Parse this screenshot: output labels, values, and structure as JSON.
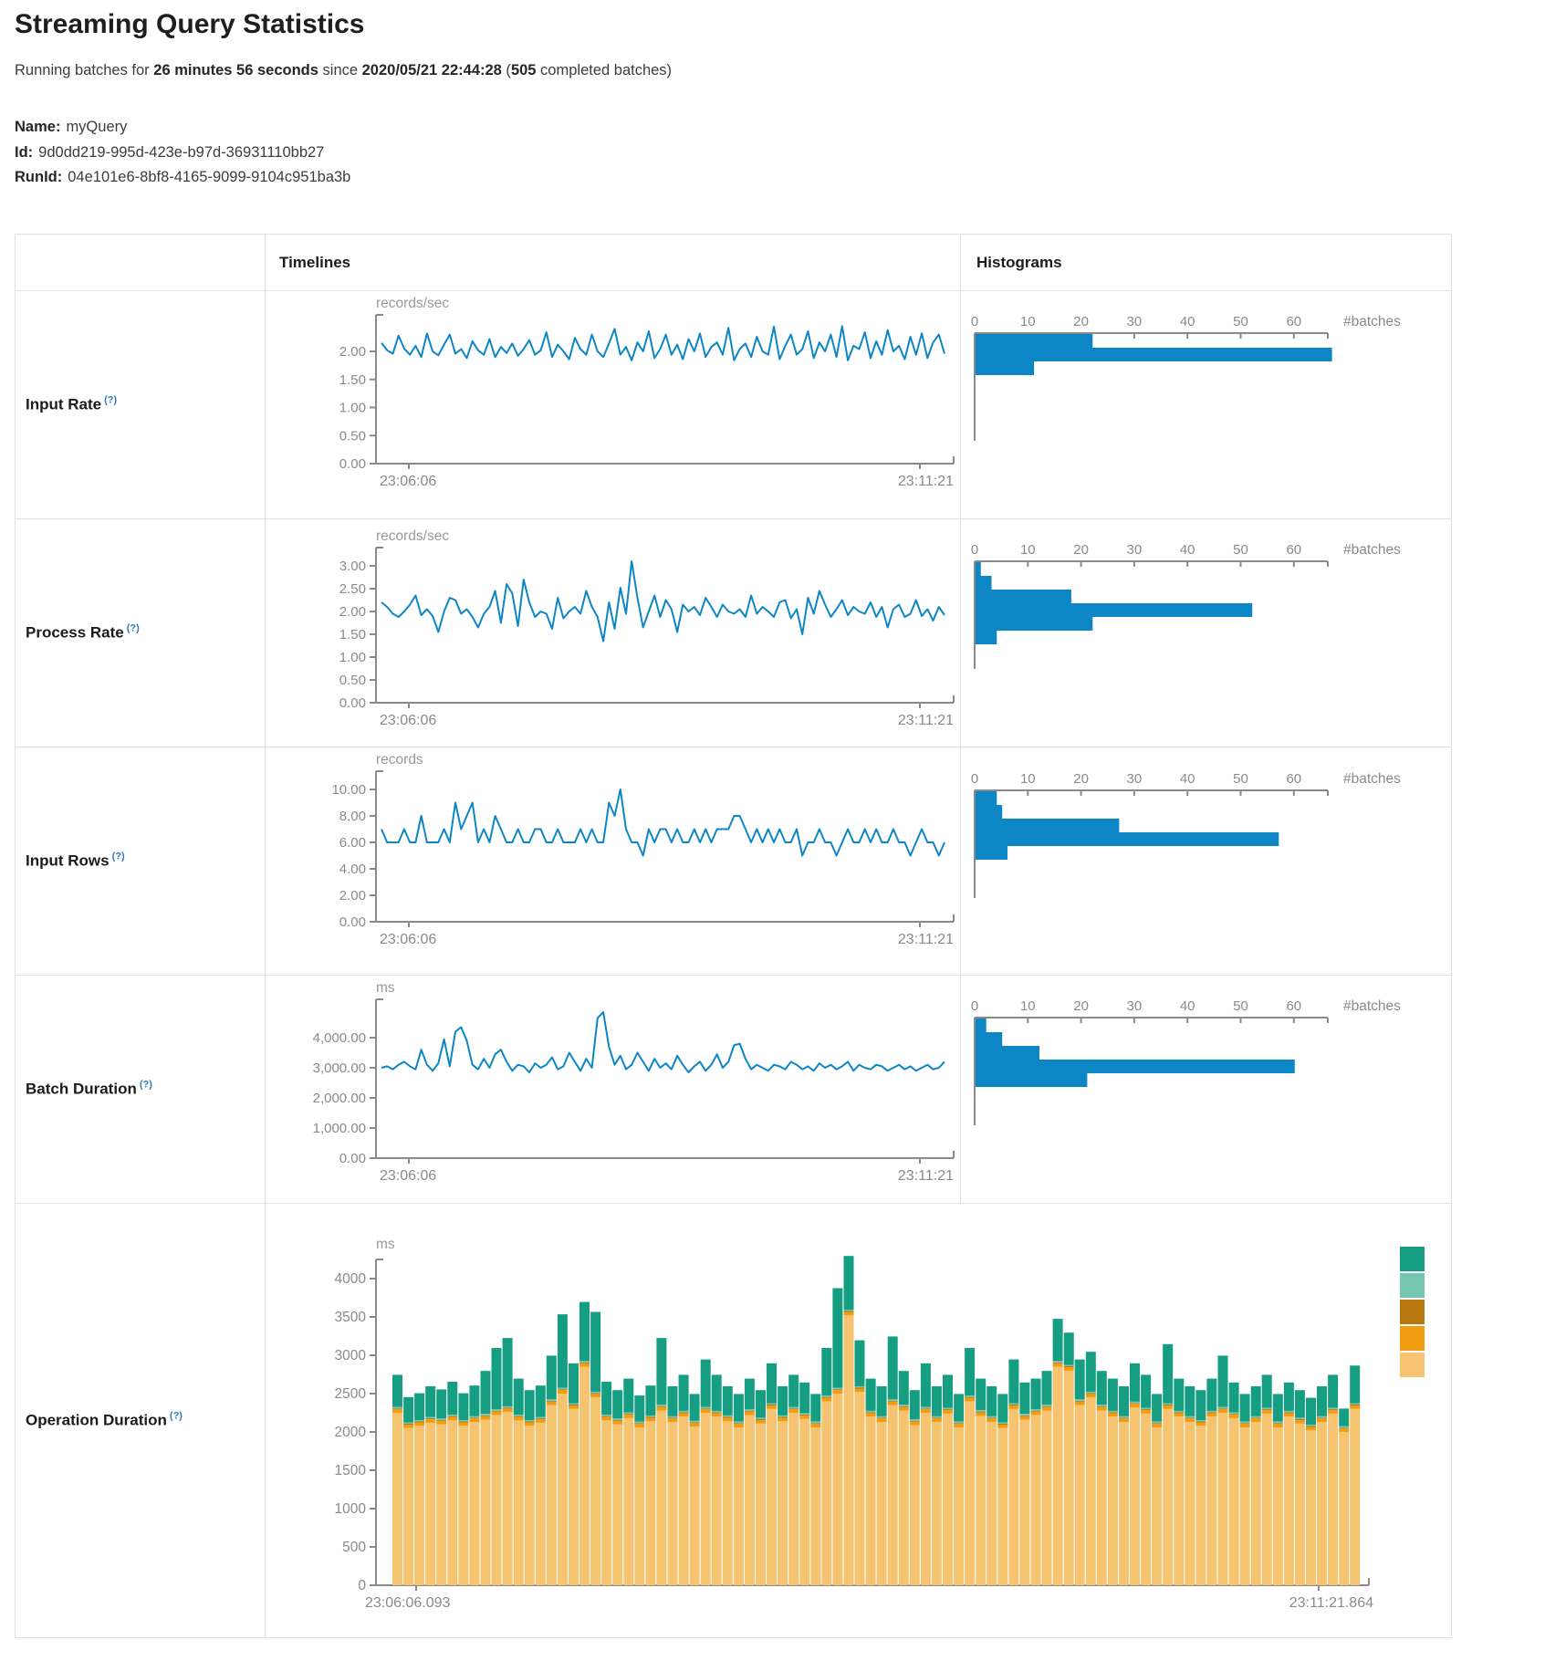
{
  "page": {
    "title": "Streaming Query Statistics",
    "subtitle": {
      "prefix": "Running batches for ",
      "duration": "26 minutes 56 seconds",
      "middle": " since ",
      "start_time": "2020/05/21 22:44:28",
      "open_paren": " (",
      "batches": "505",
      "suffix": " completed batches)"
    },
    "meta": {
      "name_label": "Name:",
      "name": "myQuery",
      "id_label": "Id:",
      "id": "9d0dd219-995d-423e-b97d-36931110bb27",
      "runid_label": "RunId:",
      "runid": "04e101e6-8bf8-4165-9099-9104c951ba3b"
    }
  },
  "table": {
    "header": {
      "timelines": "Timelines",
      "histograms": "Histograms"
    },
    "rows": [
      {
        "label": "Input Rate",
        "help": "(?)"
      },
      {
        "label": "Process Rate",
        "help": "(?)"
      },
      {
        "label": "Input Rows",
        "help": "(?)"
      },
      {
        "label": "Batch Duration",
        "help": "(?)"
      },
      {
        "label": "Operation Duration",
        "help": "(?)"
      }
    ]
  },
  "colors": {
    "accent_blue": "#0d86c6",
    "axis": "#8a8a8a",
    "tick_text": "#8a8a8a",
    "unit_text": "#9a9a9a",
    "border": "#dee2e6",
    "help_link": "#337ab7",
    "stack_bottom_to_top": [
      "#f6c370",
      "#f29c11",
      "#b8780f",
      "#74c5b1",
      "#169e82"
    ]
  },
  "chart_data": [
    {
      "row": "Input Rate",
      "timeline": {
        "type": "line",
        "ylabel": "records/sec",
        "x_start": "23:06:06",
        "x_end": "23:11:21",
        "ytick_values": [
          0,
          0.5,
          1,
          1.5,
          2
        ],
        "ytick_labels": [
          "0.00",
          "0.50",
          "1.00",
          "1.50",
          "2.00"
        ],
        "ylim": [
          0,
          2.65
        ],
        "values": [
          2.15,
          2.02,
          1.96,
          2.28,
          2.05,
          1.94,
          2.1,
          1.9,
          2.32,
          2.0,
          1.93,
          2.12,
          2.3,
          1.96,
          2.04,
          1.88,
          2.18,
          2.02,
          1.94,
          2.22,
          1.9,
          2.08,
          1.97,
          2.14,
          1.92,
          2.04,
          2.2,
          1.94,
          2.02,
          2.34,
          1.9,
          2.12,
          2.0,
          1.86,
          2.24,
          2.04,
          1.94,
          2.3,
          2.0,
          1.9,
          2.14,
          2.4,
          1.94,
          2.08,
          1.84,
          2.16,
          2.0,
          2.36,
          1.88,
          2.04,
          2.3,
          1.94,
          2.12,
          1.86,
          2.22,
          2.0,
          2.32,
          1.9,
          2.08,
          2.16,
          1.94,
          2.42,
          1.84,
          2.04,
          2.14,
          1.9,
          2.26,
          2.0,
          1.94,
          2.44,
          1.86,
          2.1,
          2.3,
          1.94,
          2.04,
          2.36,
          1.88,
          2.16,
          2.0,
          2.3,
          1.9,
          2.45,
          1.84,
          2.1,
          2.04,
          2.34,
          1.88,
          2.18,
          1.94,
          2.38,
          2.0,
          2.1,
          1.86,
          2.26,
          1.94,
          2.32,
          1.88,
          2.16,
          2.3,
          1.96
        ]
      },
      "histogram": {
        "type": "bar",
        "orientation": "horizontal",
        "xlabel": "#batches",
        "xticks": [
          0,
          10,
          20,
          30,
          40,
          50,
          60
        ],
        "xlim": [
          0,
          66.5
        ],
        "values": [
          22,
          67,
          11
        ]
      }
    },
    {
      "row": "Process Rate",
      "timeline": {
        "type": "line",
        "ylabel": "records/sec",
        "x_start": "23:06:06",
        "x_end": "23:11:21",
        "ytick_values": [
          0,
          0.5,
          1,
          1.5,
          2,
          2.5,
          3
        ],
        "ytick_labels": [
          "0.00",
          "0.50",
          "1.00",
          "1.50",
          "2.00",
          "2.50",
          "3.00"
        ],
        "ylim": [
          0,
          3.4
        ],
        "values": [
          2.2,
          2.1,
          1.95,
          1.88,
          2.0,
          2.15,
          2.35,
          1.92,
          2.05,
          1.9,
          1.55,
          2.0,
          2.3,
          2.25,
          1.95,
          2.05,
          1.88,
          1.65,
          1.95,
          2.1,
          2.45,
          1.75,
          2.6,
          2.4,
          1.68,
          2.7,
          2.2,
          1.88,
          2.0,
          1.95,
          1.62,
          2.3,
          1.85,
          2.0,
          2.1,
          1.95,
          2.45,
          2.1,
          1.88,
          1.35,
          2.2,
          1.62,
          2.52,
          1.95,
          3.1,
          2.3,
          1.65,
          2.0,
          2.35,
          1.88,
          2.25,
          2.05,
          1.55,
          2.15,
          2.0,
          2.1,
          1.92,
          2.3,
          2.1,
          1.88,
          2.15,
          2.0,
          1.95,
          2.05,
          1.88,
          2.35,
          1.95,
          2.1,
          2.0,
          1.88,
          2.2,
          2.25,
          1.85,
          2.05,
          1.5,
          2.3,
          1.95,
          2.45,
          2.15,
          1.88,
          2.05,
          2.25,
          1.92,
          2.1,
          2.0,
          1.95,
          2.2,
          1.88,
          2.1,
          1.65,
          2.05,
          2.15,
          1.88,
          1.95,
          2.25,
          1.9,
          2.05,
          1.8,
          2.1,
          1.92
        ]
      },
      "histogram": {
        "type": "bar",
        "orientation": "horizontal",
        "xlabel": "#batches",
        "xticks": [
          0,
          10,
          20,
          30,
          40,
          50,
          60
        ],
        "xlim": [
          0,
          66.5
        ],
        "values": [
          1,
          3,
          18,
          52,
          22,
          4
        ]
      }
    },
    {
      "row": "Input Rows",
      "timeline": {
        "type": "line",
        "ylabel": "records",
        "x_start": "23:06:06",
        "x_end": "23:11:21",
        "ytick_values": [
          0,
          2,
          4,
          6,
          8,
          10
        ],
        "ytick_labels": [
          "0.00",
          "2.00",
          "4.00",
          "6.00",
          "8.00",
          "10.00"
        ],
        "ylim": [
          0,
          11.4
        ],
        "values": [
          7,
          6,
          6,
          6,
          7,
          6,
          6,
          8,
          6,
          6,
          6,
          7,
          6,
          9,
          7,
          8,
          9,
          6,
          7,
          6,
          8,
          7,
          6,
          6,
          7,
          6,
          6,
          7,
          7,
          6,
          6,
          7,
          6,
          6,
          6,
          7,
          6,
          7,
          6,
          6,
          9,
          8,
          10,
          7,
          6,
          6,
          5,
          7,
          6,
          7,
          7,
          6,
          7,
          6,
          6,
          7,
          6,
          7,
          6,
          7,
          7,
          7,
          8,
          8,
          7,
          6,
          7,
          6,
          7,
          6,
          7,
          6,
          6,
          7,
          5,
          6,
          6,
          7,
          6,
          6,
          5,
          6,
          7,
          6,
          6,
          7,
          6,
          7,
          6,
          6,
          7,
          6,
          6,
          5,
          6,
          7,
          6,
          6,
          5,
          6
        ]
      },
      "histogram": {
        "type": "bar",
        "orientation": "horizontal",
        "xlabel": "#batches",
        "xticks": [
          0,
          10,
          20,
          30,
          40,
          50,
          60
        ],
        "xlim": [
          0,
          66.5
        ],
        "values": [
          4,
          5,
          27,
          57,
          6
        ]
      }
    },
    {
      "row": "Batch Duration",
      "timeline": {
        "type": "line",
        "ylabel": "ms",
        "x_start": "23:06:06",
        "x_end": "23:11:21",
        "ytick_values": [
          0,
          1000,
          2000,
          3000,
          4000
        ],
        "ytick_labels": [
          "0.00",
          "1,000.00",
          "2,000.00",
          "3,000.00",
          "4,000.00"
        ],
        "ylim": [
          0,
          5270
        ],
        "values": [
          3000,
          3050,
          2950,
          3100,
          3200,
          3050,
          2950,
          3600,
          3100,
          2900,
          3150,
          3950,
          3050,
          4200,
          4350,
          3900,
          3100,
          2950,
          3300,
          3000,
          3450,
          3600,
          3200,
          2900,
          3100,
          3050,
          2850,
          3150,
          3000,
          3100,
          3350,
          2950,
          3050,
          3500,
          3200,
          2900,
          3300,
          3000,
          4650,
          4850,
          3700,
          3100,
          3400,
          2950,
          3100,
          3500,
          3200,
          2900,
          3300,
          3000,
          3150,
          2950,
          3400,
          3100,
          2850,
          3050,
          3200,
          2900,
          3100,
          3450,
          3000,
          3200,
          3750,
          3800,
          3300,
          2950,
          3100,
          3000,
          2900,
          3100,
          3050,
          2950,
          3200,
          3100,
          2950,
          3050,
          2900,
          3150,
          3000,
          3100,
          2950,
          3050,
          3200,
          2900,
          3100,
          3000,
          2950,
          3100,
          3050,
          2900,
          3000,
          3100,
          2950,
          3050,
          2900,
          3000,
          3100,
          2950,
          3000,
          3200
        ]
      },
      "histogram": {
        "type": "bar",
        "orientation": "horizontal",
        "xlabel": "#batches",
        "xticks": [
          0,
          10,
          20,
          30,
          40,
          50,
          60
        ],
        "xlim": [
          0,
          66.5
        ],
        "values": [
          2,
          5,
          12,
          60,
          21
        ]
      }
    },
    {
      "row": "Operation Duration",
      "timeline": {
        "type": "stacked-bar",
        "ylabel": "ms",
        "x_start": "23:06:06.093",
        "x_end": "23:11:21.864",
        "ytick_values": [
          0,
          500,
          1000,
          1500,
          2000,
          2500,
          3000,
          3500,
          4000
        ],
        "ytick_labels": [
          "0",
          "500",
          "1000",
          "1500",
          "2000",
          "2500",
          "3000",
          "3500",
          "4000"
        ],
        "ylim": [
          0,
          4450
        ],
        "legend_colors_top_to_bottom": [
          "#169e82",
          "#74c5b1",
          "#b8780f",
          "#f29c11",
          "#f6c370"
        ],
        "series": [
          {
            "name": "base-layer-tan",
            "color": "#f6c370",
            "values": [
              2250,
              2050,
              2080,
              2120,
              2100,
              2150,
              2080,
              2130,
              2160,
              2220,
              2260,
              2150,
              2080,
              2120,
              2350,
              2500,
              2300,
              2850,
              2450,
              2150,
              2100,
              2180,
              2060,
              2140,
              2280,
              2130,
              2200,
              2070,
              2250,
              2200,
              2140,
              2060,
              2220,
              2110,
              2300,
              2140,
              2250,
              2170,
              2060,
              2400,
              2500,
              3520,
              2520,
              2200,
              2130,
              2350,
              2280,
              2090,
              2250,
              2130,
              2240,
              2060,
              2400,
              2210,
              2130,
              2050,
              2300,
              2160,
              2220,
              2280,
              2850,
              2800,
              2350,
              2450,
              2280,
              2200,
              2130,
              2320,
              2240,
              2060,
              2300,
              2200,
              2130,
              2080,
              2200,
              2250,
              2180,
              2060,
              2130,
              2240,
              2060,
              2200,
              2110,
              2020,
              2130,
              2240,
              2000,
              2300
            ]
          },
          {
            "name": "layer-orange",
            "color": "#f29c11",
            "constant": 45
          },
          {
            "name": "layer-brown",
            "color": "#b8780f",
            "constant": 12
          },
          {
            "name": "layer-seafoam",
            "color": "#74c5b1",
            "constant": 18
          },
          {
            "name": "top-layer-teal",
            "color": "#169e82",
            "values": [
              420,
              330,
              350,
              400,
              380,
              430,
              350,
              400,
              560,
              800,
              890,
              470,
              390,
              410,
              570,
              960,
              520,
              770,
              1040,
              430,
              370,
              440,
              340,
              390,
              870,
              390,
              470,
              350,
              620,
              470,
              380,
              360,
              400,
              360,
              520,
              380,
              420,
              400,
              360,
              620,
              1300,
              700,
              600,
              420,
              390,
              820,
              440,
              380,
              570,
              390,
              430,
              360,
              620,
              410,
              390,
              370,
              570,
              410,
              400,
              440,
              550,
              420,
              520,
              520,
              440,
              420,
              390,
              500,
              430,
              360,
              770,
              420,
              390,
              390,
              420,
              670,
              390,
              360,
              390,
              430,
              360,
              370,
              360,
              350,
              390,
              430,
              230,
              490
            ]
          }
        ]
      }
    }
  ]
}
